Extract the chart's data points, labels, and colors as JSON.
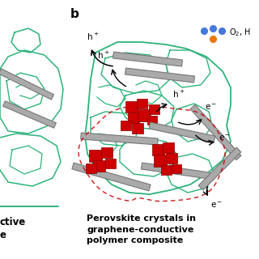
{
  "bg_color": "#ffffff",
  "title_b": "b",
  "label_text": "Perovskite crystals in\ngraphene-conductive\npolymer composite",
  "label_fontsize": 8.0,
  "polymer_color": "#2db37a",
  "perovskite_color": "#cc0000",
  "graphene_color": "#aaaaaa",
  "graphene_edge": "#777777",
  "arrow_color": "#111111",
  "dashed_color": "#cc0000",
  "dot_blue": "#4477dd",
  "dot_orange": "#ee7700",
  "o2_text": "O$_2$, H",
  "figsize": [
    3.2,
    3.2
  ],
  "dpi": 100
}
